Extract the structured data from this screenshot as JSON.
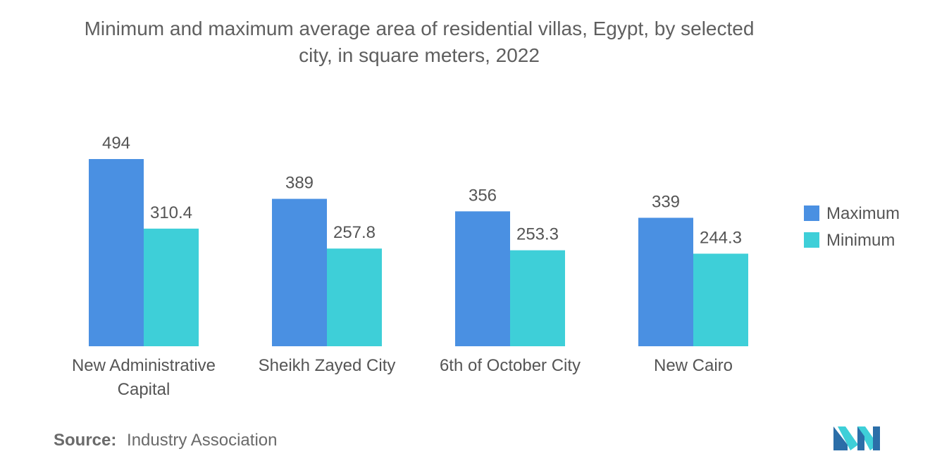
{
  "chart_data": {
    "type": "bar",
    "title": "Minimum and maximum average area of residential villas, Egypt, by selected city, in square meters, 2022",
    "categories": [
      [
        "New Administrative",
        "Capital"
      ],
      [
        "Sheikh Zayed City"
      ],
      [
        "6th of October City"
      ],
      [
        "New Cairo"
      ]
    ],
    "series": [
      {
        "name": "Maximum",
        "color": "#4a90e2",
        "values": [
          494,
          389,
          356,
          339
        ],
        "labels": [
          "494",
          "389",
          "356",
          "339"
        ]
      },
      {
        "name": "Minimum",
        "color": "#3ecfd8",
        "values": [
          310.4,
          257.8,
          253.3,
          244.3
        ],
        "labels": [
          "310.4",
          "257.8",
          "253.3",
          "244.3"
        ]
      }
    ],
    "ylim": [
      0,
      494
    ],
    "grid": false,
    "legend": "right"
  },
  "source": {
    "label": "Source:",
    "text": "Industry Association"
  },
  "logo": {
    "name": "mordor-intelligence-logo",
    "colors": [
      "#2b6ea8",
      "#3ecfd8"
    ]
  }
}
